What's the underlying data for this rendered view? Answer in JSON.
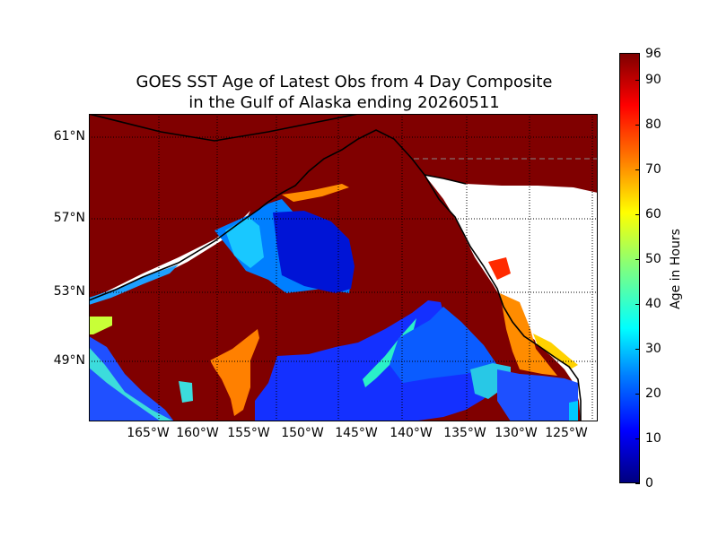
{
  "title_line1": "GOES SST Age of Latest Obs from 4 Day Composite",
  "title_line2": "in the Gulf of Alaska ending 20260511",
  "lat_labels": [
    "61°N",
    "57°N",
    "53°N",
    "49°N"
  ],
  "lon_labels": [
    "165°W",
    "160°W",
    "155°W",
    "150°W",
    "145°W",
    "140°W",
    "135°W",
    "130°W",
    "125°W"
  ],
  "colorbar": {
    "label": "Age in Hours",
    "ticks": [
      "0",
      "10",
      "20",
      "30",
      "40",
      "50",
      "60",
      "70",
      "80",
      "90",
      "96"
    ],
    "min": 0,
    "max": 96,
    "colormap": "jet"
  },
  "colors": {
    "no_data": "#800000",
    "land": "#ffffff",
    "coastline": "#000000",
    "grid": "#000000"
  }
}
